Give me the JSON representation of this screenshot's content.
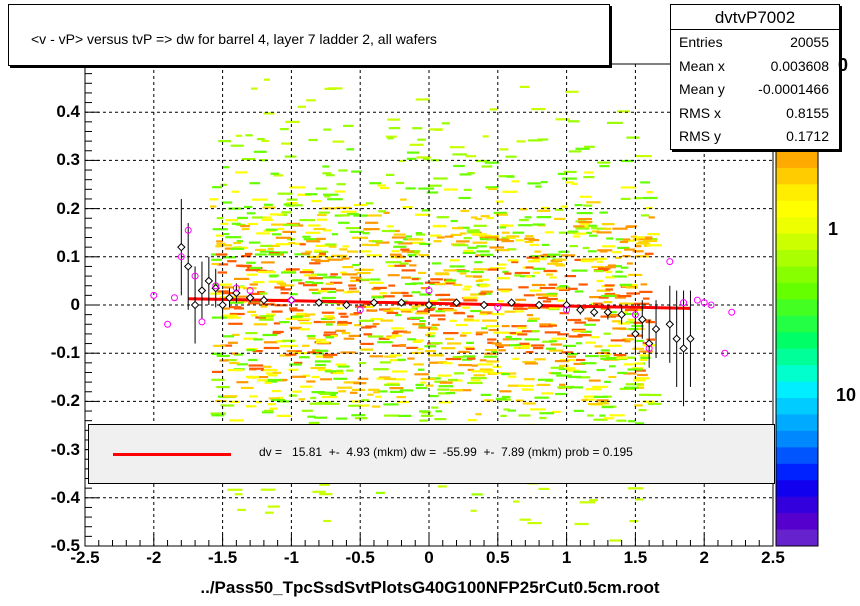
{
  "title": "<v - vP>       versus  tvP =>  dw for barrel 4, layer 7 ladder 2, all wafers",
  "stats": {
    "name": "dvtvP7002",
    "rows": [
      {
        "key": "Entries",
        "value": "20055"
      },
      {
        "key": "Mean x",
        "value": "0.003608"
      },
      {
        "key": "Mean y",
        "value": "-0.0001466"
      },
      {
        "key": "RMS x",
        "value": "0.8155"
      },
      {
        "key": "RMS y",
        "value": "0.1712"
      }
    ]
  },
  "fit": {
    "text": "dv =   15.81  +-  4.93 (mkm) dw =  -55.99  +-  7.89 (mkm) prob = 0.195",
    "color": "#ff0000"
  },
  "xtitle": "../Pass50_TpcSsdSvtPlotsG40G100NFP25rCut0.5cm.root",
  "colorbar": {
    "labels": [
      "1",
      "10"
    ],
    "partial_top_label": "0"
  },
  "chart_data": {
    "type": "scatter",
    "subtype": "2D histogram with profile points and linear fit",
    "title": "<v - vP>       versus  tvP =>  dw for barrel 4, layer 7 ladder 2, all wafers",
    "xlabel": "../Pass50_TpcSsdSvtPlotsG40G100NFP25rCut0.5cm.root",
    "ylabel": "",
    "xlim": [
      -2.5,
      2.5
    ],
    "ylim": [
      -0.5,
      0.5
    ],
    "x_ticks": [
      "-2.5",
      "-2",
      "-1.5",
      "-1",
      "-0.5",
      "0",
      "0.5",
      "1",
      "1.5",
      "2",
      "2.5"
    ],
    "y_ticks": [
      "-0.5",
      "-0.4",
      "-0.3",
      "-0.2",
      "-0.1",
      "0",
      "0.1",
      "0.2",
      "0.3",
      "0.4"
    ],
    "y_tick_values": [
      -0.5,
      -0.4,
      -0.3,
      -0.2,
      -0.1,
      0,
      0.1,
      0.2,
      0.3,
      0.4
    ],
    "x_tick_values": [
      -2.5,
      -2,
      -1.5,
      -1,
      -0.5,
      0,
      0.5,
      1,
      1.5,
      2,
      2.5
    ],
    "grid": true,
    "fit_line": {
      "x": [
        -1.75,
        1.9
      ],
      "y": [
        0.013,
        -0.007
      ],
      "color": "#ff0000"
    },
    "profile_black": [
      {
        "x": -1.8,
        "y": 0.12,
        "e": 0.1
      },
      {
        "x": -1.75,
        "y": 0.08,
        "e": 0.09
      },
      {
        "x": -1.7,
        "y": 0.0,
        "e": 0.08
      },
      {
        "x": -1.65,
        "y": 0.03,
        "e": 0.06
      },
      {
        "x": -1.6,
        "y": 0.05,
        "e": 0.05
      },
      {
        "x": -1.55,
        "y": 0.035,
        "e": 0.04
      },
      {
        "x": -1.5,
        "y": 0.0,
        "e": 0.03
      },
      {
        "x": -1.45,
        "y": 0.015,
        "e": 0.02
      },
      {
        "x": -1.4,
        "y": 0.025,
        "e": 0.02
      },
      {
        "x": -1.3,
        "y": 0.015,
        "e": 0.01
      },
      {
        "x": -1.2,
        "y": 0.01,
        "e": 0.01
      },
      {
        "x": -1.0,
        "y": 0.01,
        "e": 0.008
      },
      {
        "x": -0.8,
        "y": 0.005,
        "e": 0.008
      },
      {
        "x": -0.6,
        "y": 0.0,
        "e": 0.008
      },
      {
        "x": -0.4,
        "y": 0.005,
        "e": 0.008
      },
      {
        "x": -0.2,
        "y": 0.005,
        "e": 0.008
      },
      {
        "x": 0.0,
        "y": 0.0,
        "e": 0.008
      },
      {
        "x": 0.2,
        "y": 0.005,
        "e": 0.008
      },
      {
        "x": 0.4,
        "y": 0.0,
        "e": 0.008
      },
      {
        "x": 0.6,
        "y": 0.005,
        "e": 0.008
      },
      {
        "x": 0.8,
        "y": 0.0,
        "e": 0.008
      },
      {
        "x": 1.0,
        "y": 0.0,
        "e": 0.01
      },
      {
        "x": 1.1,
        "y": -0.01,
        "e": 0.01
      },
      {
        "x": 1.2,
        "y": -0.015,
        "e": 0.01
      },
      {
        "x": 1.3,
        "y": -0.015,
        "e": 0.015
      },
      {
        "x": 1.4,
        "y": -0.02,
        "e": 0.02
      },
      {
        "x": 1.5,
        "y": -0.06,
        "e": 0.04
      },
      {
        "x": 1.55,
        "y": -0.03,
        "e": 0.04
      },
      {
        "x": 1.6,
        "y": -0.08,
        "e": 0.05
      },
      {
        "x": 1.65,
        "y": -0.05,
        "e": 0.06
      },
      {
        "x": 1.75,
        "y": -0.04,
        "e": 0.08
      },
      {
        "x": 1.8,
        "y": -0.07,
        "e": 0.1
      },
      {
        "x": 1.85,
        "y": -0.09,
        "e": 0.12
      },
      {
        "x": 1.9,
        "y": -0.07,
        "e": 0.1
      }
    ],
    "profile_magenta": [
      {
        "x": -2.0,
        "y": 0.02
      },
      {
        "x": -1.9,
        "y": -0.04
      },
      {
        "x": -1.85,
        "y": 0.015
      },
      {
        "x": -1.8,
        "y": 0.1
      },
      {
        "x": -1.75,
        "y": 0.155
      },
      {
        "x": -1.7,
        "y": 0.06
      },
      {
        "x": -1.65,
        "y": -0.035
      },
      {
        "x": -1.55,
        "y": 0.04
      },
      {
        "x": -1.4,
        "y": 0.035
      },
      {
        "x": -1.3,
        "y": 0.03
      },
      {
        "x": -1.0,
        "y": 0.01
      },
      {
        "x": -0.5,
        "y": -0.01
      },
      {
        "x": 0.0,
        "y": 0.03
      },
      {
        "x": 0.5,
        "y": -0.005
      },
      {
        "x": 1.0,
        "y": -0.01
      },
      {
        "x": 1.5,
        "y": -0.02
      },
      {
        "x": 1.6,
        "y": -0.09
      },
      {
        "x": 1.75,
        "y": 0.09
      },
      {
        "x": 1.85,
        "y": 0.005
      },
      {
        "x": 1.95,
        "y": 0.01
      },
      {
        "x": 2.0,
        "y": 0.005
      },
      {
        "x": 2.05,
        "y": 0.0
      },
      {
        "x": 2.15,
        "y": -0.1
      },
      {
        "x": 2.2,
        "y": -0.015
      }
    ]
  }
}
